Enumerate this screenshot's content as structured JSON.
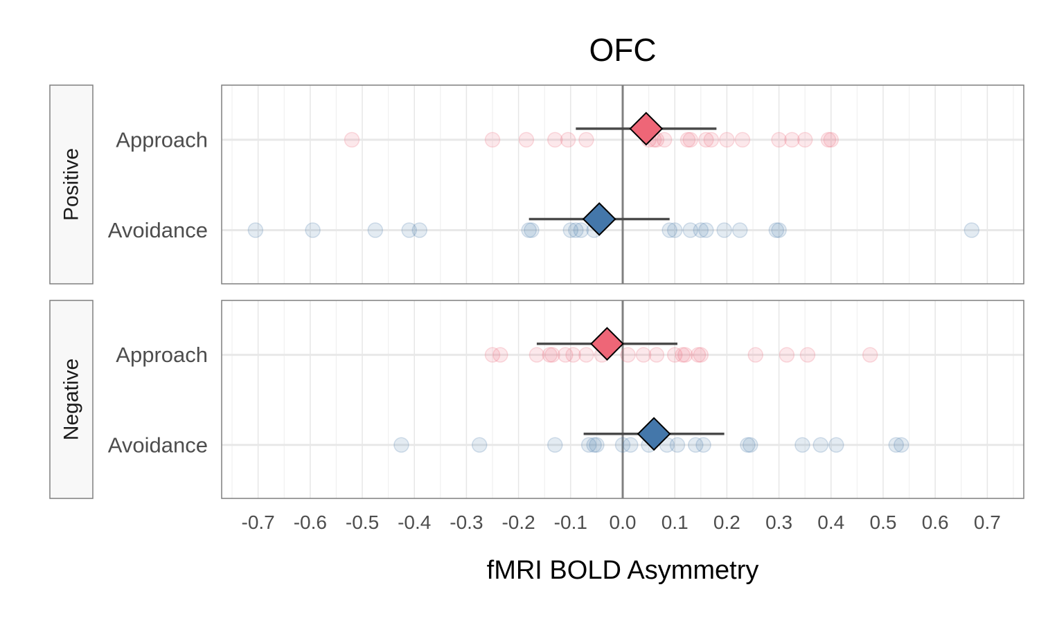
{
  "chart_data": {
    "type": "scatter",
    "title": "OFC",
    "xlabel": "fMRI BOLD Asymmetry",
    "xlim": [
      -0.77,
      0.77
    ],
    "x_ticks": [
      -0.7,
      -0.6,
      -0.5,
      -0.4,
      -0.3,
      -0.2,
      -0.1,
      0.0,
      0.1,
      0.2,
      0.3,
      0.4,
      0.5,
      0.6,
      0.7
    ],
    "x_tick_labels": [
      "-0.7",
      "-0.6",
      "-0.5",
      "-0.4",
      "-0.3",
      "-0.2",
      "-0.1",
      "0.0",
      "0.1",
      "0.2",
      "0.3",
      "0.4",
      "0.5",
      "0.6",
      "0.7"
    ],
    "categories": [
      "Approach",
      "Avoidance"
    ],
    "reference_line_x": 0,
    "grid": true,
    "colors": {
      "Approach": "#ee6677",
      "Avoidance": "#4477aa"
    },
    "panels": [
      {
        "label": "Positive",
        "series": [
          {
            "name": "Approach",
            "mean": 0.045,
            "ci": [
              -0.09,
              0.18
            ],
            "points": [
              -0.52,
              -0.25,
              -0.185,
              -0.13,
              -0.105,
              -0.07,
              0.05,
              0.06,
              0.065,
              0.08,
              0.125,
              0.13,
              0.16,
              0.17,
              0.2,
              0.23,
              0.3,
              0.325,
              0.35,
              0.395,
              0.4
            ]
          },
          {
            "name": "Avoidance",
            "mean": -0.045,
            "ci": [
              -0.18,
              0.09
            ],
            "points": [
              -0.705,
              -0.595,
              -0.475,
              -0.41,
              -0.39,
              -0.18,
              -0.175,
              -0.1,
              -0.09,
              -0.08,
              -0.055,
              0.09,
              0.1,
              0.13,
              0.15,
              0.16,
              0.195,
              0.225,
              0.295,
              0.3,
              0.67
            ]
          }
        ]
      },
      {
        "label": "Negative",
        "series": [
          {
            "name": "Approach",
            "mean": -0.03,
            "ci": [
              -0.165,
              0.105
            ],
            "points": [
              -0.25,
              -0.235,
              -0.165,
              -0.14,
              -0.135,
              -0.11,
              -0.095,
              -0.07,
              -0.04,
              0.01,
              0.04,
              0.065,
              0.1,
              0.115,
              0.12,
              0.145,
              0.15,
              0.255,
              0.315,
              0.355,
              0.475
            ]
          },
          {
            "name": "Avoidance",
            "mean": 0.06,
            "ci": [
              -0.075,
              0.195
            ],
            "points": [
              -0.425,
              -0.275,
              -0.13,
              -0.065,
              -0.055,
              -0.05,
              0.0,
              0.015,
              0.05,
              0.085,
              0.105,
              0.14,
              0.155,
              0.24,
              0.245,
              0.345,
              0.38,
              0.41,
              0.525,
              0.535
            ]
          }
        ]
      }
    ]
  }
}
